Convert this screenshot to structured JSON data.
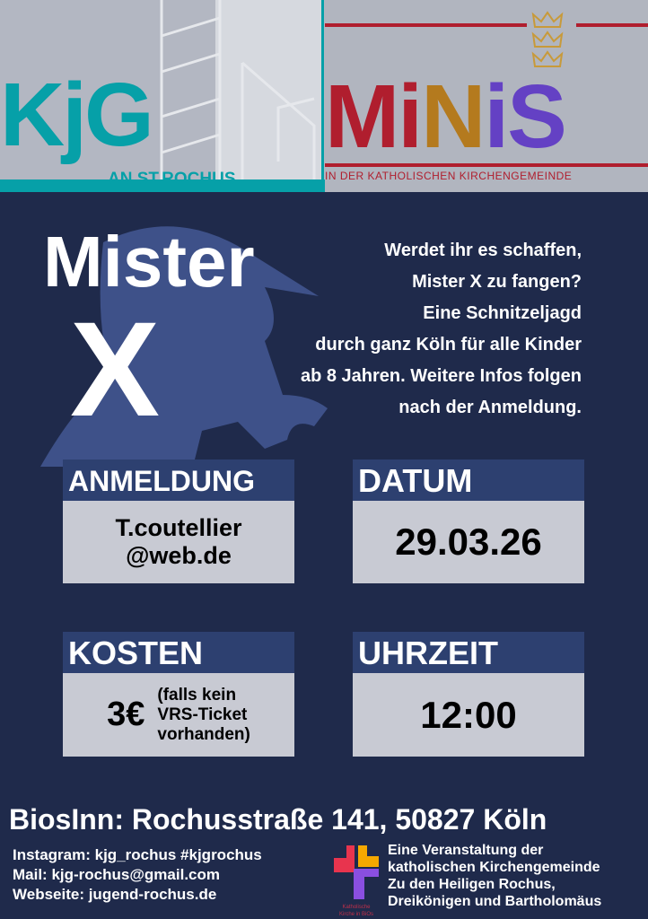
{
  "logos": {
    "kjg": {
      "text": "KjG",
      "sub": "AN ST.ROCHUS"
    },
    "minis": {
      "text": "MiNiS",
      "sub": "IN DER KATHOLISCHEN KIRCHENGEMEINDE"
    },
    "bios": "Katholische Kirche in BiOs"
  },
  "title": {
    "line1": "Mister",
    "line2": "X"
  },
  "intro": [
    "Werdet ihr es schaffen,",
    "Mister X zu fangen?",
    "Eine Schnitzeljagd",
    "durch ganz Köln für alle Kinder",
    "ab 8 Jahren. Weitere Infos folgen",
    "nach der Anmeldung."
  ],
  "boxes": {
    "anmeldung": {
      "label": "ANMELDUNG",
      "line1": "T.coutellier",
      "line2": "@web.de"
    },
    "datum": {
      "label": "DATUM",
      "value": "29.03.26"
    },
    "kosten": {
      "label": "KOSTEN",
      "value": "3€",
      "note1": "(falls kein",
      "note2": "VRS-Ticket",
      "note3": "vorhanden)"
    },
    "uhrzeit": {
      "label": "UHRZEIT",
      "value": "12:00"
    }
  },
  "address": "BiosInn: Rochusstraße 141, 50827 Köln",
  "contact": [
    "Instagram: kjg_rochus #kjgrochus",
    "Mail: kjg-rochus@gmail.com",
    "Webseite: jugend-rochus.de"
  ],
  "organizer": [
    "Eine Veranstaltung der",
    "katholischen Kirchengemeinde",
    "Zu den Heiligen Rochus,",
    "Dreikönigen und Bartholomäus"
  ],
  "colors": {
    "background": "#1f2a4b",
    "box_header": "#2d4070",
    "box_body": "#c8cad3",
    "kjg_teal": "#06a0a8",
    "minis_red": "#b01e2e",
    "minis_gold": "#b47a1e",
    "minis_purple": "#6441c4"
  }
}
